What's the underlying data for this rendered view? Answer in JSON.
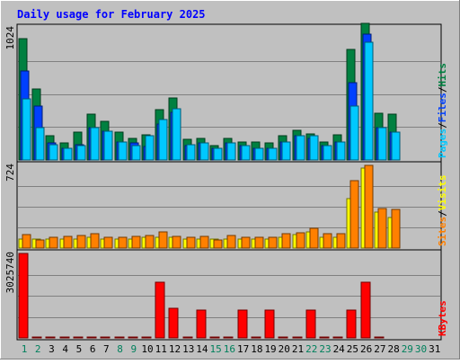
{
  "chart_data": {
    "type": "bar",
    "title": "Daily usage for February 2025",
    "categories": [
      "1",
      "2",
      "3",
      "4",
      "5",
      "6",
      "7",
      "8",
      "9",
      "10",
      "11",
      "12",
      "13",
      "14",
      "15",
      "16",
      "17",
      "18",
      "19",
      "20",
      "21",
      "22",
      "23",
      "24",
      "25",
      "26",
      "27",
      "28",
      "29",
      "30",
      "31"
    ],
    "weekend_days": [
      "1",
      "2",
      "8",
      "9",
      "15",
      "16",
      "22",
      "23",
      "29",
      "30"
    ],
    "panels": [
      {
        "id": "hits-files-pages",
        "axis_max_label": "1024",
        "ylim": [
          0,
          1100
        ],
        "legend": [
          {
            "text": "Pages",
            "color": "#00c8ff"
          },
          {
            "text": "/",
            "color": "#000000"
          },
          {
            "text": "Files",
            "color": "#0040ff"
          },
          {
            "text": "/",
            "color": "#000000"
          },
          {
            "text": "Hits",
            "color": "#008040"
          }
        ],
        "series": [
          {
            "name": "Hits",
            "color": "#008040",
            "values": [
              1010,
              590,
              200,
              140,
              230,
              380,
              320,
              230,
              180,
              210,
              420,
              520,
              170,
              180,
              120,
              180,
              150,
              150,
              140,
              200,
              250,
              220,
              150,
              210,
              920,
              1140,
              390,
              380,
              0,
              0,
              0
            ]
          },
          {
            "name": "Files",
            "color": "#0040ff",
            "values": [
              740,
              450,
              140,
              100,
              130,
              270,
              240,
              150,
              140,
              110,
              300,
              400,
              120,
              140,
              100,
              140,
              120,
              100,
              100,
              150,
              200,
              180,
              120,
              150,
              640,
              1050,
              270,
              230,
              0,
              0,
              0
            ]
          },
          {
            "name": "Pages",
            "color": "#00c8ff",
            "values": [
              510,
              270,
              130,
              100,
              120,
              270,
              240,
              150,
              120,
              200,
              340,
              430,
              130,
              140,
              100,
              140,
              120,
              100,
              100,
              150,
              200,
              200,
              120,
              150,
              450,
              980,
              270,
              230,
              0,
              0,
              0
            ]
          }
        ]
      },
      {
        "id": "visits-sites",
        "axis_max_label": "724",
        "ylim": [
          0,
          750
        ],
        "legend": [
          {
            "text": "Sites",
            "color": "#ff8000"
          },
          {
            "text": "/",
            "color": "#000000"
          },
          {
            "text": "Visits",
            "color": "#ffff00"
          }
        ],
        "series": [
          {
            "name": "Visits",
            "color": "#ffff00",
            "values": [
              85,
              80,
              80,
              80,
              80,
              100,
              80,
              80,
              80,
              100,
              100,
              100,
              80,
              80,
              80,
              80,
              80,
              85,
              80,
              100,
              120,
              150,
              100,
              100,
              450,
              724,
              330,
              280,
              0,
              0,
              0
            ]
          },
          {
            "name": "Sites",
            "color": "#ff8000",
            "values": [
              120,
              70,
              100,
              110,
              115,
              130,
              100,
              100,
              105,
              115,
              145,
              110,
              100,
              110,
              70,
              115,
              100,
              100,
              100,
              130,
              140,
              180,
              130,
              130,
              610,
              750,
              360,
              350,
              0,
              0,
              0
            ]
          }
        ]
      },
      {
        "id": "kbytes",
        "axis_max_label": "3025740",
        "ylim": [
          0,
          3025740
        ],
        "legend": [
          {
            "text": "KBytes",
            "color": "#ff0000"
          }
        ],
        "series": [
          {
            "name": "KBytes",
            "color": "#ff0000",
            "values": [
              3025740,
              20000,
              20000,
              20000,
              20000,
              20000,
              20000,
              20000,
              20000,
              20000,
              1990000,
              1050000,
              20000,
              990000,
              20000,
              40000,
              990000,
              20000,
              990000,
              20000,
              20000,
              990000,
              20000,
              20000,
              990000,
              1990000,
              20000,
              0,
              0,
              0,
              0
            ]
          }
        ]
      }
    ]
  }
}
